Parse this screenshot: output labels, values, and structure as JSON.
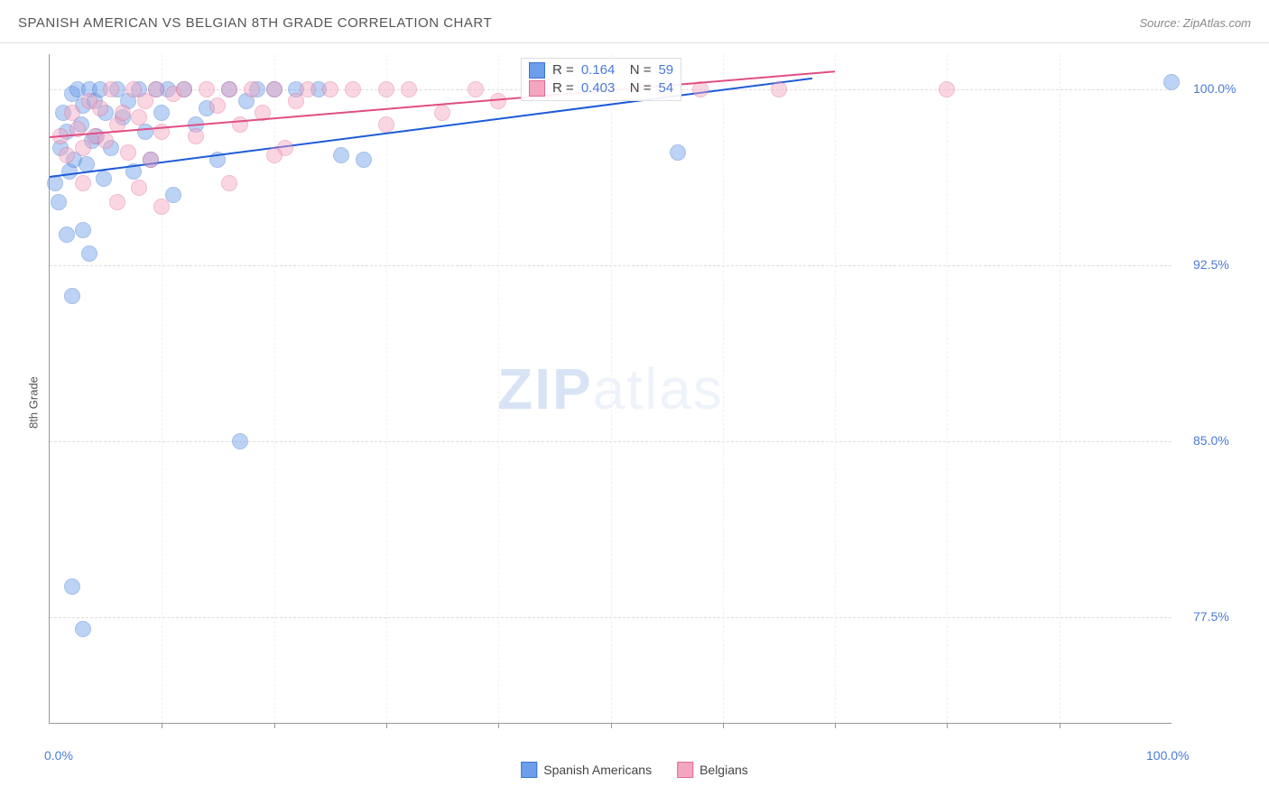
{
  "title": "SPANISH AMERICAN VS BELGIAN 8TH GRADE CORRELATION CHART",
  "source": "Source: ZipAtlas.com",
  "ylabel": "8th Grade",
  "watermark_bold": "ZIP",
  "watermark_light": "atlas",
  "chart": {
    "type": "scatter",
    "background_color": "#ffffff",
    "grid_color": "#dddddd",
    "axis_color": "#999999",
    "text_color": "#555555",
    "value_color": "#4a7bd8",
    "xlim": [
      0,
      100
    ],
    "ylim": [
      73,
      101.5
    ],
    "yticks": [
      {
        "value": 100.0,
        "label": "100.0%"
      },
      {
        "value": 92.5,
        "label": "92.5%"
      },
      {
        "value": 85.0,
        "label": "85.0%"
      },
      {
        "value": 77.5,
        "label": "77.5%"
      }
    ],
    "xticks_minor": [
      10,
      20,
      30,
      40,
      50,
      60,
      70,
      80,
      90
    ],
    "xticks_labeled": [
      {
        "value": 0,
        "label": "0.0%"
      },
      {
        "value": 100,
        "label": "100.0%"
      }
    ],
    "marker_radius": 9,
    "marker_opacity": 0.45,
    "series": [
      {
        "name": "Spanish Americans",
        "fill": "#6d9eeb",
        "stroke": "#3b74cf",
        "points": [
          [
            0.5,
            96.0
          ],
          [
            0.8,
            95.2
          ],
          [
            1.0,
            97.5
          ],
          [
            1.2,
            99.0
          ],
          [
            1.5,
            98.2
          ],
          [
            1.8,
            96.5
          ],
          [
            2.0,
            99.8
          ],
          [
            2.2,
            97.0
          ],
          [
            2.5,
            100.0
          ],
          [
            2.8,
            98.5
          ],
          [
            3.0,
            99.3
          ],
          [
            3.3,
            96.8
          ],
          [
            3.5,
            100.0
          ],
          [
            3.8,
            97.8
          ],
          [
            4.0,
            99.5
          ],
          [
            4.2,
            98.0
          ],
          [
            4.5,
            100.0
          ],
          [
            4.8,
            96.2
          ],
          [
            5.0,
            99.0
          ],
          [
            5.5,
            97.5
          ],
          [
            6.0,
            100.0
          ],
          [
            6.5,
            98.8
          ],
          [
            7.0,
            99.5
          ],
          [
            7.5,
            96.5
          ],
          [
            8.0,
            100.0
          ],
          [
            8.5,
            98.2
          ],
          [
            9.0,
            97.0
          ],
          [
            9.5,
            100.0
          ],
          [
            10.0,
            99.0
          ],
          [
            10.5,
            100.0
          ],
          [
            11.0,
            95.5
          ],
          [
            12.0,
            100.0
          ],
          [
            13.0,
            98.5
          ],
          [
            14.0,
            99.2
          ],
          [
            15.0,
            97.0
          ],
          [
            16.0,
            100.0
          ],
          [
            17.5,
            99.5
          ],
          [
            18.5,
            100.0
          ],
          [
            20.0,
            100.0
          ],
          [
            22.0,
            100.0
          ],
          [
            24.0,
            100.0
          ],
          [
            2.0,
            91.2
          ],
          [
            3.0,
            94.0
          ],
          [
            3.5,
            93.0
          ],
          [
            1.5,
            93.8
          ],
          [
            17.0,
            85.0
          ],
          [
            56.0,
            97.3
          ],
          [
            26.0,
            97.2
          ],
          [
            28.0,
            97.0
          ],
          [
            100.0,
            100.3
          ],
          [
            2.0,
            78.8
          ],
          [
            3.0,
            77.0
          ]
        ],
        "trend": {
          "x1": 0,
          "y1": 96.3,
          "x2": 68,
          "y2": 100.5,
          "color": "#1e5bd8",
          "width": 2
        },
        "R": "0.164",
        "N": "59"
      },
      {
        "name": "Belgians",
        "fill": "#f4a6c0",
        "stroke": "#e46a93",
        "points": [
          [
            1.0,
            98.0
          ],
          [
            1.5,
            97.2
          ],
          [
            2.0,
            99.0
          ],
          [
            2.5,
            98.3
          ],
          [
            3.0,
            97.5
          ],
          [
            3.5,
            99.5
          ],
          [
            4.0,
            98.0
          ],
          [
            4.5,
            99.2
          ],
          [
            5.0,
            97.8
          ],
          [
            5.5,
            100.0
          ],
          [
            6.0,
            98.5
          ],
          [
            6.5,
            99.0
          ],
          [
            7.0,
            97.3
          ],
          [
            7.5,
            100.0
          ],
          [
            8.0,
            98.8
          ],
          [
            8.5,
            99.5
          ],
          [
            9.0,
            97.0
          ],
          [
            9.5,
            100.0
          ],
          [
            10.0,
            98.2
          ],
          [
            11.0,
            99.8
          ],
          [
            12.0,
            100.0
          ],
          [
            13.0,
            98.0
          ],
          [
            14.0,
            100.0
          ],
          [
            15.0,
            99.3
          ],
          [
            16.0,
            100.0
          ],
          [
            17.0,
            98.5
          ],
          [
            18.0,
            100.0
          ],
          [
            19.0,
            99.0
          ],
          [
            20.0,
            100.0
          ],
          [
            21.0,
            97.5
          ],
          [
            22.0,
            99.5
          ],
          [
            23.0,
            100.0
          ],
          [
            25.0,
            100.0
          ],
          [
            27.0,
            100.0
          ],
          [
            30.0,
            98.5
          ],
          [
            32.0,
            100.0
          ],
          [
            35.0,
            99.0
          ],
          [
            38.0,
            100.0
          ],
          [
            40.0,
            99.5
          ],
          [
            45.0,
            100.0
          ],
          [
            50.0,
            100.0
          ],
          [
            55.0,
            100.0
          ],
          [
            58.0,
            100.0
          ],
          [
            6.0,
            95.2
          ],
          [
            8.0,
            95.8
          ],
          [
            10.0,
            95.0
          ],
          [
            16.0,
            96.0
          ],
          [
            20.0,
            97.2
          ],
          [
            3.0,
            96.0
          ],
          [
            30.0,
            100.0
          ],
          [
            65.0,
            100.0
          ],
          [
            80.0,
            100.0
          ]
        ],
        "trend": {
          "x1": 0,
          "y1": 98.0,
          "x2": 70,
          "y2": 100.8,
          "color": "#e04e84",
          "width": 2
        },
        "R": "0.403",
        "N": "54"
      }
    ],
    "stats_box": {
      "left_pct": 42,
      "top_pct": 0.5
    },
    "legend": {
      "items": [
        {
          "label": "Spanish Americans",
          "fill": "#6d9eeb",
          "stroke": "#3b74cf"
        },
        {
          "label": "Belgians",
          "fill": "#f4a6c0",
          "stroke": "#e46a93"
        }
      ]
    }
  }
}
